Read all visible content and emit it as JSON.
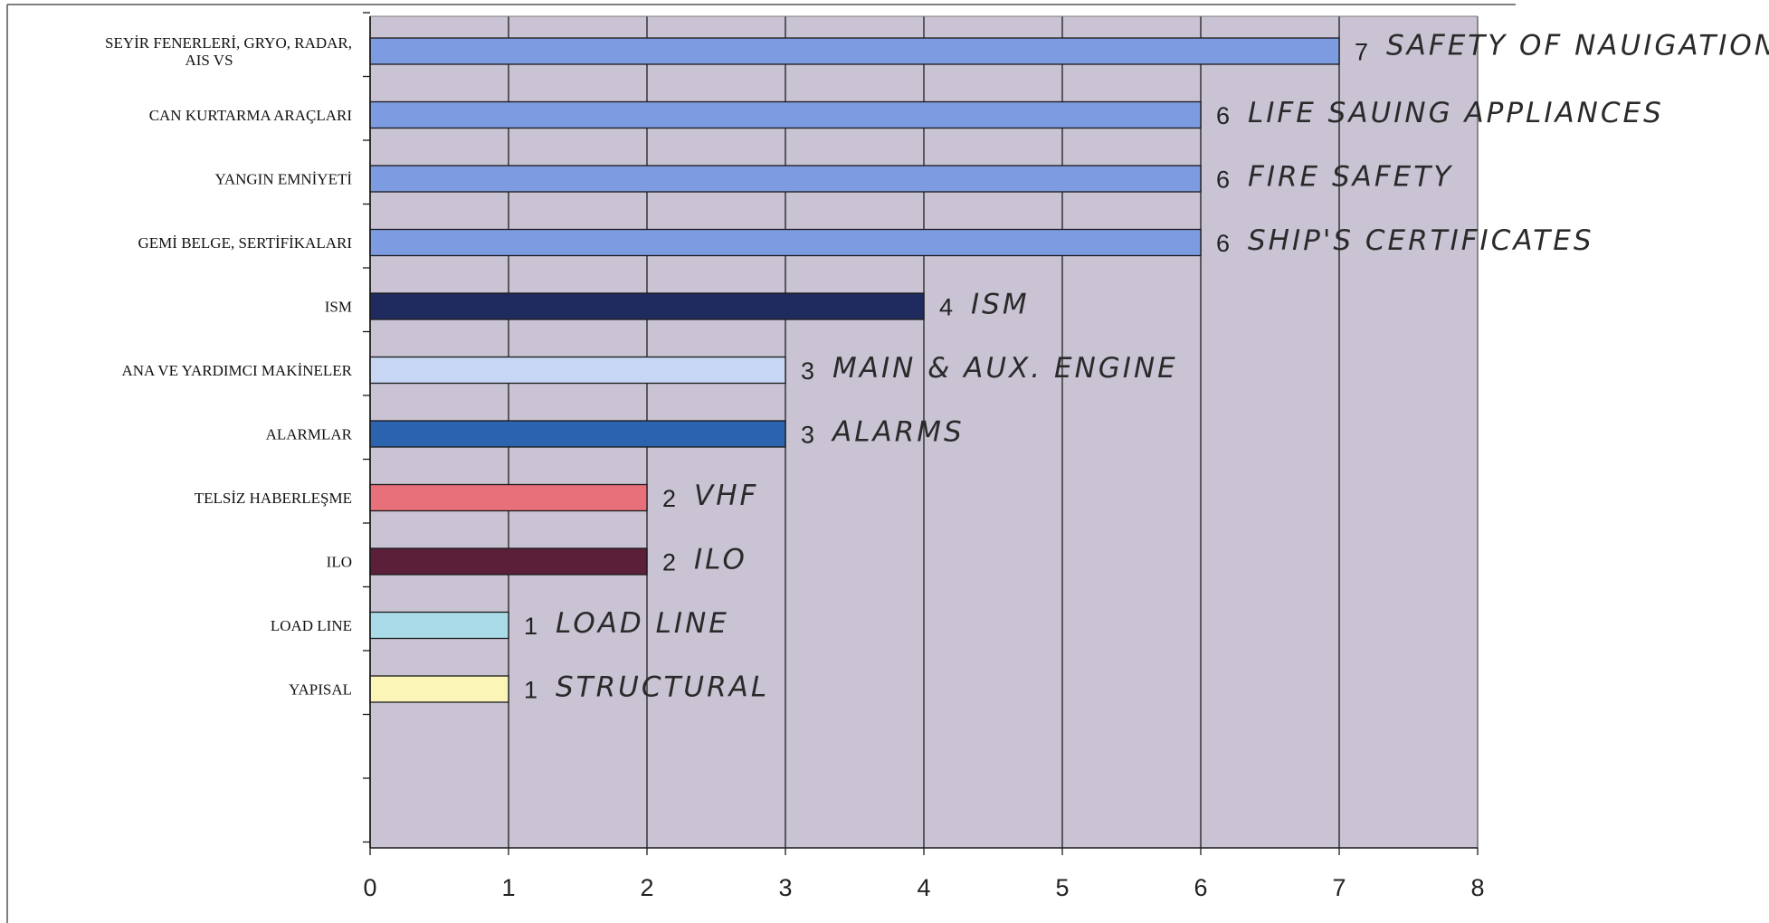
{
  "chart_data": {
    "type": "bar",
    "orientation": "horizontal",
    "categories": [
      "SEYİR FENERLERİ, GRYO, RADAR, AIS VS",
      "CAN KURTARMA ARAÇLARI",
      "YANGIN EMNİYETİ",
      "GEMİ BELGE, SERTİFİKALARI",
      "ISM",
      "ANA VE YARDIMCI MAKİNELER",
      "ALARMLAR",
      "TELSİZ HABERLEŞME",
      "ILO",
      "LOAD LINE",
      "YAPISAL"
    ],
    "category_lines": [
      [
        "SEYİR FENERLERİ, GRYO, RADAR,",
        "AIS VS"
      ],
      [
        "CAN KURTARMA ARAÇLARI"
      ],
      [
        "YANGIN EMNİYETİ"
      ],
      [
        "GEMİ BELGE, SERTİFİKALARI"
      ],
      [
        "ISM"
      ],
      [
        "ANA VE YARDIMCI MAKİNELER"
      ],
      [
        "ALARMLAR"
      ],
      [
        "TELSİZ HABERLEŞME"
      ],
      [
        "ILO"
      ],
      [
        "LOAD LINE"
      ],
      [
        "YAPISAL"
      ]
    ],
    "values": [
      7,
      6,
      6,
      6,
      4,
      3,
      3,
      2,
      2,
      1,
      1
    ],
    "bar_colors": [
      "#7d9be0",
      "#7d9be0",
      "#7d9be0",
      "#7d9be0",
      "#1f2a5e",
      "#c6d6f3",
      "#2c63ae",
      "#e8707a",
      "#5c1f3a",
      "#a9dbe8",
      "#fbf6b8"
    ],
    "annotations": [
      "SAFETY OF NAUIGATION",
      "LIFE SAUING APPLIANCES",
      "FIRE SAFETY",
      "SHIP'S CERTIFICATES",
      "ISM",
      "MAIN & AUX. ENGINE",
      "ALARMS",
      "VHF",
      "ILO",
      "LOAD LINE",
      "STRUCTURAL"
    ],
    "xlim": [
      0,
      8
    ],
    "xticks": [
      "0",
      "1",
      "2",
      "3",
      "4",
      "5",
      "6",
      "7",
      "8"
    ],
    "grid": "vertical",
    "plot_background": "#c9c3d3",
    "title": "",
    "xlabel": "",
    "ylabel": ""
  }
}
